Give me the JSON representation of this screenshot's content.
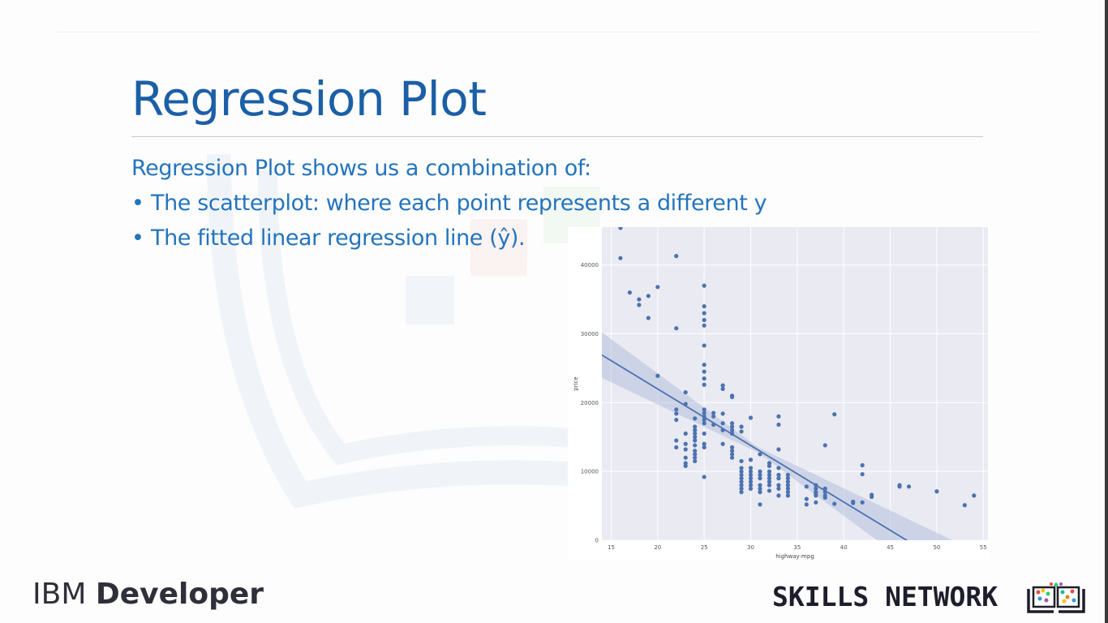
{
  "slide": {
    "title": "Regression Plot",
    "intro": "Regression Plot shows us a combination of:",
    "bullets": [
      "The scatterplot: where each point represents a different y",
      "The fitted linear regression line (ŷ)."
    ],
    "bullet_glyph": "•"
  },
  "branding": {
    "ibm_prefix": "IBM",
    "ibm_suffix": "Developer",
    "skills_network": "SKILLS NETWORK",
    "skills_network_icon": "book-with-colored-dots-icon"
  },
  "colors": {
    "title": "#1b5fa6",
    "body": "#2474bc",
    "plot_background": "#eaeaf2",
    "points": "#4c72b0",
    "regression_line": "#4c72b0",
    "confidence_band": "#b3bfdc"
  },
  "chart_data": {
    "type": "scatter",
    "title": "",
    "xlabel": "highway-mpg",
    "ylabel": "price",
    "xlim": [
      14,
      55.5
    ],
    "ylim": [
      0,
      45500
    ],
    "xticks": [
      15,
      20,
      25,
      30,
      35,
      40,
      45,
      50,
      55
    ],
    "yticks": [
      0,
      10000,
      20000,
      30000,
      40000
    ],
    "grid": true,
    "legend": "none",
    "regression": {
      "slope": -821.7,
      "intercept": 38423,
      "ci_center_x": 30.75,
      "ci_halfwidth_base": 380,
      "ci_halfwidth_slope": 175
    },
    "points": [
      [
        16,
        45400
      ],
      [
        16,
        41000
      ],
      [
        17,
        36000
      ],
      [
        18,
        35000
      ],
      [
        18,
        34200
      ],
      [
        19,
        35500
      ],
      [
        19,
        32300
      ],
      [
        20,
        36800
      ],
      [
        20,
        23900
      ],
      [
        22,
        41300
      ],
      [
        22,
        30800
      ],
      [
        22,
        19000
      ],
      [
        22,
        18400
      ],
      [
        22,
        17500
      ],
      [
        22,
        14500
      ],
      [
        22,
        13500
      ],
      [
        23,
        21500
      ],
      [
        23,
        19800
      ],
      [
        23,
        15500
      ],
      [
        23,
        14000
      ],
      [
        23,
        13200
      ],
      [
        23,
        12000
      ],
      [
        23,
        11200
      ],
      [
        23,
        10800
      ],
      [
        24,
        17700
      ],
      [
        24,
        16500
      ],
      [
        24,
        16000
      ],
      [
        24,
        15500
      ],
      [
        24,
        15000
      ],
      [
        24,
        14500
      ],
      [
        24,
        13800
      ],
      [
        24,
        13000
      ],
      [
        24,
        12500
      ],
      [
        24,
        12000
      ],
      [
        24,
        11500
      ],
      [
        25,
        37000
      ],
      [
        25,
        34000
      ],
      [
        25,
        33000
      ],
      [
        25,
        32000
      ],
      [
        25,
        31200
      ],
      [
        25,
        28300
      ],
      [
        25,
        25500
      ],
      [
        25,
        24500
      ],
      [
        25,
        23500
      ],
      [
        25,
        22600
      ],
      [
        25,
        19000
      ],
      [
        25,
        18500
      ],
      [
        25,
        18000
      ],
      [
        25,
        17500
      ],
      [
        25,
        17000
      ],
      [
        25,
        15500
      ],
      [
        25,
        14000
      ],
      [
        25,
        13500
      ],
      [
        25,
        9200
      ],
      [
        26,
        18500
      ],
      [
        26,
        18000
      ],
      [
        26,
        16800
      ],
      [
        27,
        22500
      ],
      [
        27,
        22000
      ],
      [
        27,
        18400
      ],
      [
        27,
        17000
      ],
      [
        27,
        16000
      ],
      [
        27,
        14000
      ],
      [
        28,
        21000
      ],
      [
        28,
        20800
      ],
      [
        28,
        17000
      ],
      [
        28,
        16500
      ],
      [
        28,
        16000
      ],
      [
        28,
        15500
      ],
      [
        28,
        13500
      ],
      [
        28,
        13000
      ],
      [
        28,
        12500
      ],
      [
        28,
        12000
      ],
      [
        29,
        16500
      ],
      [
        29,
        15800
      ],
      [
        29,
        11500
      ],
      [
        29,
        10500
      ],
      [
        29,
        10000
      ],
      [
        29,
        9500
      ],
      [
        29,
        9000
      ],
      [
        29,
        8500
      ],
      [
        29,
        8000
      ],
      [
        29,
        7500
      ],
      [
        29,
        7000
      ],
      [
        30,
        17800
      ],
      [
        30,
        11700
      ],
      [
        30,
        10500
      ],
      [
        30,
        10000
      ],
      [
        30,
        9500
      ],
      [
        30,
        9000
      ],
      [
        30,
        8500
      ],
      [
        30,
        8000
      ],
      [
        30,
        7500
      ],
      [
        31,
        12500
      ],
      [
        31,
        10000
      ],
      [
        31,
        9500
      ],
      [
        31,
        9000
      ],
      [
        31,
        8000
      ],
      [
        31,
        7500
      ],
      [
        31,
        7000
      ],
      [
        31,
        5200
      ],
      [
        32,
        11200
      ],
      [
        32,
        10800
      ],
      [
        32,
        10000
      ],
      [
        32,
        9500
      ],
      [
        32,
        9000
      ],
      [
        32,
        8500
      ],
      [
        32,
        8000
      ],
      [
        32,
        7200
      ],
      [
        33,
        18000
      ],
      [
        33,
        16800
      ],
      [
        33,
        13200
      ],
      [
        33,
        10500
      ],
      [
        33,
        9500
      ],
      [
        33,
        9000
      ],
      [
        33,
        8000
      ],
      [
        33,
        7500
      ],
      [
        33,
        6500
      ],
      [
        34,
        9500
      ],
      [
        34,
        9000
      ],
      [
        34,
        8500
      ],
      [
        34,
        8000
      ],
      [
        34,
        7500
      ],
      [
        34,
        7000
      ],
      [
        34,
        6500
      ],
      [
        36,
        7800
      ],
      [
        36,
        6000
      ],
      [
        36,
        5200
      ],
      [
        37,
        8000
      ],
      [
        37,
        7500
      ],
      [
        37,
        7000
      ],
      [
        37,
        6800
      ],
      [
        37,
        6500
      ],
      [
        37,
        5500
      ],
      [
        38,
        13800
      ],
      [
        38,
        7500
      ],
      [
        38,
        7000
      ],
      [
        38,
        6500
      ],
      [
        38,
        6200
      ],
      [
        39,
        18300
      ],
      [
        39,
        5300
      ],
      [
        41,
        5600
      ],
      [
        41,
        5400
      ],
      [
        42,
        10900
      ],
      [
        42,
        9600
      ],
      [
        42,
        5500
      ],
      [
        43,
        6600
      ],
      [
        43,
        6300
      ],
      [
        46,
        8000
      ],
      [
        46,
        7800
      ],
      [
        47,
        7800
      ],
      [
        50,
        7100
      ],
      [
        53,
        5100
      ],
      [
        54,
        6500
      ]
    ]
  }
}
